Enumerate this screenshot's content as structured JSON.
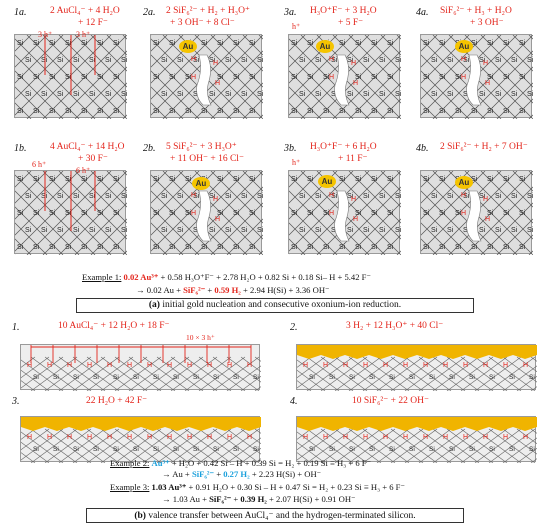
{
  "colors": {
    "reaction": "#e3241b",
    "blue_species": "#1aa0dc",
    "gold": "#f5c400",
    "silicon_bg": "#dfdfdf",
    "gold_layer": "#f0b400"
  },
  "panels_top": [
    {
      "tag": "1a.",
      "equation": "2 AuCl₄⁻ + 4 H₂O",
      "equation2": "+ 12 F⁻",
      "charge_a": "3 h⁺",
      "charge_b": "3 h⁺"
    },
    {
      "tag": "2a.",
      "equation": "2 SiF₆²⁻ + H₂ + H₃O⁺",
      "equation2": "+ 3 OH⁻ + 8 Cl⁻",
      "au": "Au"
    },
    {
      "tag": "3a.",
      "equation": "H₃O⁺F⁻ + 3 H₂O",
      "equation2": "+ 5 F⁻",
      "charge_a": "h⁺",
      "au": "Au"
    },
    {
      "tag": "4a.",
      "equation": "SiF₆²⁻ + H₃ + H₂O",
      "equation2": "+ 3 OH⁻",
      "au": "Au"
    }
  ],
  "panels_mid": [
    {
      "tag": "1b.",
      "equation": "4 AuCl₄⁻ + 14 H₂O",
      "equation2": "+ 30 F⁻",
      "charge_a": "6 h⁺",
      "charge_b": "6 h⁺"
    },
    {
      "tag": "2b.",
      "equation": "5 SiF₆²⁻ + 3 H₃O⁺",
      "equation2": "+ 11 OH⁻ + 16 Cl⁻",
      "au": "Au"
    },
    {
      "tag": "3b.",
      "equation": "H₃O⁺F⁻ + 6 H₂O",
      "equation2": "+ 11 F⁻",
      "charge_a": "h⁺",
      "au": "Au"
    },
    {
      "tag": "4b.",
      "equation": "2 SiF₆²⁻ + H₂ + 7 OH⁻",
      "au": "Au"
    }
  ],
  "example1": {
    "label": "Example 1:",
    "line1_a": "0.02 Au³⁺",
    "line1_b": "+ 0.58 H₃O⁺F⁻ + 2.78 H₂O + 0.82 Si + 0.18 Si– H + 5.42 F⁻",
    "line2_a": "→ 0.02 Au +",
    "line2_b": "SiF₆²⁻",
    "line2_c": "+",
    "line2_d": "0.59 H₂",
    "line2_e": "+ 2.94 H(Si) + 3.36 OH⁻"
  },
  "caption_a": {
    "letter": "(a)",
    "text": " initial gold nucleation and consecutive oxonium-ion reduction."
  },
  "strips": [
    {
      "tag": "1.",
      "equation": "10 AuCl₄⁻ + 12 H₂O + 18 F⁻",
      "sub": "10 × 3 h⁺"
    },
    {
      "tag": "2.",
      "equation": "3 H₂ + 12 H₃O⁺ + 40 Cl⁻"
    },
    {
      "tag": "3.",
      "equation": "22 H₂O + 42 F⁻"
    },
    {
      "tag": "4.",
      "equation": "10 SiF₆²⁻ + 22 OH⁻"
    }
  ],
  "example2": {
    "label": "Example 2:",
    "l1_a": "Au³⁺",
    "l1_b": "+ H₂O + 0.42 Si – H + 0.39 Si = H₂ + 0.19 Si ≡ H₃ + 6 F⁻",
    "l2_a": "→ Au +",
    "l2_b": "SiF₆²⁻",
    "l2_c": "+",
    "l2_d": "0.27 H₂",
    "l2_e": "+ 2.23 H(Si) + OH⁻"
  },
  "example3": {
    "label": "Example 3:",
    "l1_a": "1.03 Au³⁺",
    "l1_b": "+ 0.91 H₂O + 0.30 Si – H + 0.47 Si = H₂ + 0.23 Si ≡ H₃ + 6 F⁻",
    "l2_a": "→ 1.03 Au +",
    "l2_b": "SiF₆²⁻",
    "l2_c": "+",
    "l2_d": "0.39 H₂",
    "l2_e": "+ 2.07 H(Si) + 0.91 OH⁻"
  },
  "caption_b": {
    "letter": "(b)",
    "text": " valence transfer between AuCl₄⁻ and the hydrogen-terminated silicon."
  }
}
